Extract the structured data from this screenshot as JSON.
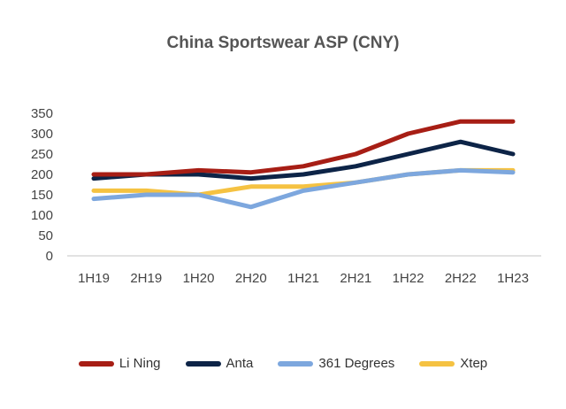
{
  "chart_data": {
    "type": "line",
    "title": "China Sportswear ASP (CNY)",
    "xlabel": "",
    "ylabel": "",
    "ylim": [
      0,
      350
    ],
    "yticks": [
      0,
      50,
      100,
      150,
      200,
      250,
      300,
      350
    ],
    "categories": [
      "1H19",
      "2H19",
      "1H20",
      "2H20",
      "1H21",
      "2H21",
      "1H22",
      "2H22",
      "1H23"
    ],
    "legend_position": "bottom",
    "grid": false,
    "series": [
      {
        "name": "Li Ning",
        "color": "#A71E15",
        "values": [
          200,
          200,
          210,
          205,
          220,
          250,
          300,
          330,
          330
        ]
      },
      {
        "name": "Anta",
        "color": "#0D2447",
        "values": [
          190,
          200,
          200,
          190,
          200,
          220,
          250,
          280,
          250
        ]
      },
      {
        "name": "361 Degrees",
        "color": "#7DA7DE",
        "values": [
          140,
          150,
          150,
          120,
          160,
          180,
          200,
          210,
          205
        ]
      },
      {
        "name": "Xtep",
        "color": "#F5C242",
        "values": [
          160,
          160,
          150,
          170,
          170,
          180,
          200,
          210,
          210
        ]
      }
    ]
  }
}
